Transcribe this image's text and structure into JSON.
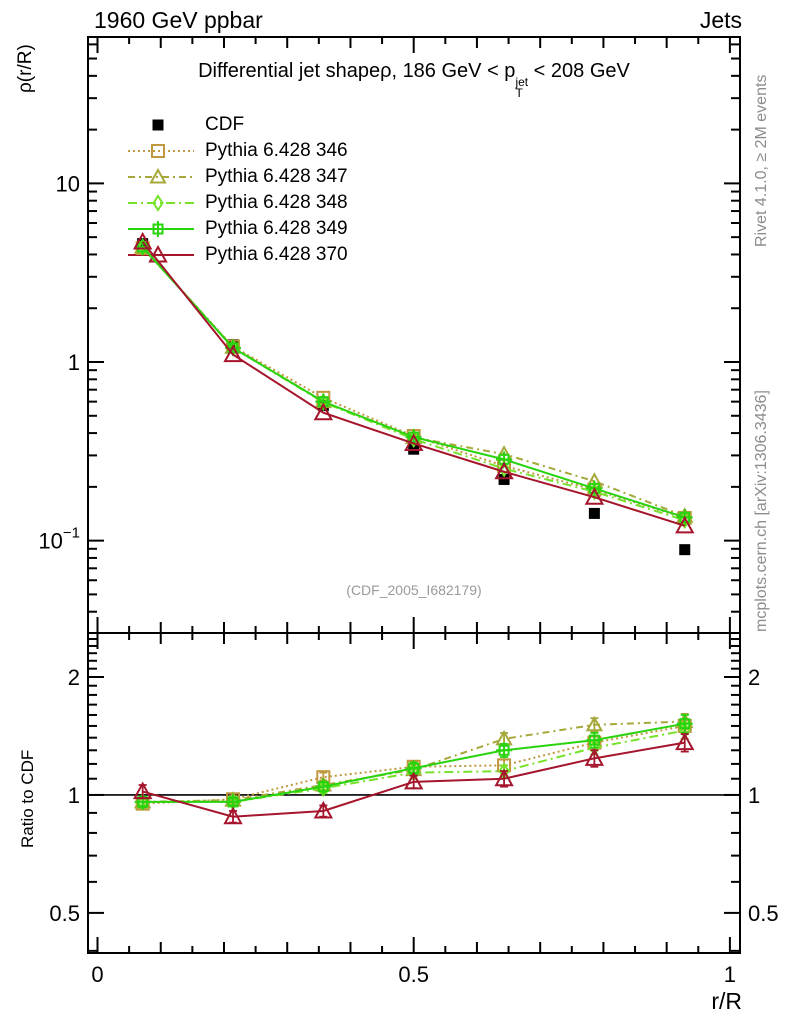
{
  "header": {
    "left": "1960 GeV ppbar",
    "right": "Jets"
  },
  "plot_title": {
    "part1": "Differential jet shapeρ, 186 GeV < p",
    "sup": "jet",
    "sub": "T",
    "part2": " < 208 GeV"
  },
  "watermark": "(CDF_2005_I682179)",
  "side_notes": {
    "top": "Rivet 4.1.0, ≥ 2M events",
    "bottom": "mcplots.cern.ch [arXiv:1306.3436]"
  },
  "chart_data": {
    "type": "line",
    "xlabel": "r/R",
    "x": [
      0.0714,
      0.2143,
      0.3571,
      0.5,
      0.6429,
      0.7857,
      0.9286
    ],
    "xlim": [
      -0.015,
      1.016
    ],
    "xtick_labels": [
      {
        "v": 0,
        "t": "0"
      },
      {
        "v": 0.5,
        "t": "0.5"
      },
      {
        "v": 1,
        "t": "1"
      }
    ],
    "top_panel": {
      "ylabel": "ρ(r/R)",
      "yscale": "log10",
      "ylim": [
        0.0304,
        66
      ],
      "ytick_labels": [
        {
          "v": 10,
          "t": "10"
        },
        {
          "v": 1,
          "t": "1"
        },
        {
          "v": 0.1,
          "t": "10",
          "exp": "−1"
        }
      ]
    },
    "ratio_panel": {
      "ylabel": "Ratio to CDF",
      "yscale": "log10",
      "ylim": [
        0.395,
        2.59
      ],
      "reference_line": 1,
      "ytick_labels": [
        {
          "v": 2,
          "t": "2"
        },
        {
          "v": 1,
          "t": "1"
        },
        {
          "v": 0.5,
          "t": "0.5"
        }
      ]
    },
    "reference_series": {
      "name": "CDF",
      "color": "#000000",
      "line": "none",
      "marker": "square-filled",
      "values": [
        4.6,
        1.25,
        0.57,
        0.325,
        0.22,
        0.142,
        0.089
      ]
    },
    "series": [
      {
        "name": "Pythia 6.428 346",
        "color": "#C0983F",
        "line": "dotted",
        "marker": "square-open",
        "values": [
          4.35,
          1.22,
          0.63,
          0.385,
          0.262,
          0.193,
          0.134
        ],
        "ratio": [
          0.95,
          0.975,
          1.11,
          1.18,
          1.19,
          1.36,
          1.5
        ],
        "ratio_err": [
          0.03,
          0.02,
          0.03,
          0.04,
          0.04,
          0.05,
          0.06
        ]
      },
      {
        "name": "Pythia 6.428 347",
        "color": "#A6A83A",
        "line": "dashdot",
        "marker": "triangle-open",
        "values": [
          4.4,
          1.21,
          0.6,
          0.378,
          0.305,
          0.215,
          0.137
        ],
        "ratio": [
          0.96,
          0.97,
          1.06,
          1.16,
          1.39,
          1.51,
          1.54
        ],
        "ratio_err": [
          0.03,
          0.02,
          0.03,
          0.04,
          0.05,
          0.06,
          0.07
        ]
      },
      {
        "name": "Pythia 6.428 348",
        "color": "#77E22B",
        "line": "dashdot2",
        "marker": "diamond-open",
        "values": [
          4.4,
          1.2,
          0.595,
          0.37,
          0.253,
          0.188,
          0.13
        ],
        "ratio": [
          0.96,
          0.96,
          1.04,
          1.14,
          1.15,
          1.32,
          1.46
        ],
        "ratio_err": [
          0.03,
          0.02,
          0.03,
          0.04,
          0.04,
          0.05,
          0.07
        ]
      },
      {
        "name": "Pythia 6.428 349",
        "color": "#29D30E",
        "line": "solid",
        "marker": "plus-square",
        "values": [
          4.4,
          1.2,
          0.6,
          0.38,
          0.285,
          0.196,
          0.135
        ],
        "ratio": [
          0.96,
          0.96,
          1.05,
          1.17,
          1.3,
          1.38,
          1.52
        ],
        "ratio_err": [
          0.03,
          0.02,
          0.03,
          0.04,
          0.05,
          0.06,
          0.08
        ]
      },
      {
        "name": "Pythia 6.428 370",
        "color": "#A5152C",
        "line": "solid",
        "marker": "triangle-open-large",
        "values": [
          4.7,
          1.1,
          0.52,
          0.35,
          0.243,
          0.175,
          0.121
        ],
        "ratio": [
          1.02,
          0.88,
          0.91,
          1.08,
          1.1,
          1.24,
          1.36
        ],
        "ratio_err": [
          0.04,
          0.03,
          0.03,
          0.04,
          0.05,
          0.06,
          0.07
        ]
      }
    ]
  }
}
